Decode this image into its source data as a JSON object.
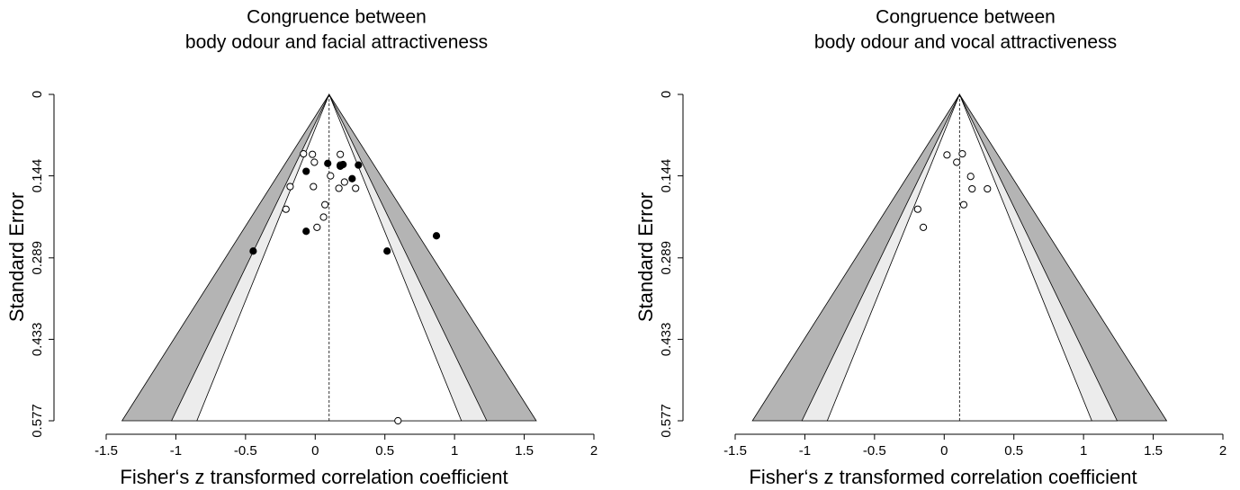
{
  "chart_data": [
    {
      "type": "funnel",
      "title": [
        "Congruence between",
        "body odour and facial attractiveness"
      ],
      "xlabel": "Fisher‘s z transformed correlation coefficient",
      "ylabel": "Standard Error",
      "xlim": [
        -1.5,
        2
      ],
      "xticks": [
        -1.5,
        -1,
        -0.5,
        0,
        0.5,
        1,
        1.5,
        2
      ],
      "ylim": [
        0,
        0.577
      ],
      "yticks": [
        0,
        0.144,
        0.289,
        0.433,
        0.577
      ],
      "funnel": {
        "center": 0.1,
        "levels": [
          1.645,
          1.96,
          2.576
        ],
        "colors": [
          "#ffffff",
          "#ececec",
          "#b4b4b4"
        ]
      },
      "series": [
        {
          "color": "#000000",
          "filled": false,
          "x": [
            -0.084,
            -0.02,
            -0.006,
            0.18,
            0.18,
            0.11,
            0.21,
            0.17,
            0.29,
            -0.18,
            -0.013,
            -0.21,
            0.07,
            0.06,
            0.013,
            0.594
          ],
          "values": [
            0.105,
            0.106,
            0.12,
            0.106,
            0.125,
            0.144,
            0.155,
            0.166,
            0.166,
            0.163,
            0.163,
            0.203,
            0.195,
            0.217,
            0.235,
            0.577
          ]
        },
        {
          "color": "#000000",
          "filled": true,
          "x": [
            -0.065,
            0.09,
            0.18,
            0.2,
            0.31,
            0.265,
            -0.065,
            -0.445,
            0.516,
            0.87
          ],
          "values": [
            0.136,
            0.122,
            0.127,
            0.124,
            0.125,
            0.149,
            0.242,
            0.277,
            0.277,
            0.25
          ]
        }
      ]
    },
    {
      "type": "funnel",
      "title": [
        "Congruence between",
        "body odour and vocal attractiveness"
      ],
      "xlabel": "Fisher‘s z transformed correlation coefficient",
      "ylabel": "Standard Error",
      "xlim": [
        -1.5,
        2
      ],
      "xticks": [
        -1.5,
        -1,
        -0.5,
        0,
        0.5,
        1,
        1.5,
        2
      ],
      "ylim": [
        0,
        0.577
      ],
      "yticks": [
        0,
        0.144,
        0.289,
        0.433,
        0.577
      ],
      "funnel": {
        "center": 0.11,
        "levels": [
          1.645,
          1.96,
          2.576
        ],
        "colors": [
          "#ffffff",
          "#ececec",
          "#b4b4b4"
        ]
      },
      "series": [
        {
          "color": "#000000",
          "filled": false,
          "x": [
            0.02,
            0.09,
            0.13,
            0.19,
            0.2,
            0.31,
            0.14,
            -0.19,
            -0.15
          ],
          "values": [
            0.107,
            0.12,
            0.105,
            0.145,
            0.167,
            0.167,
            0.195,
            0.203,
            0.235
          ]
        }
      ]
    }
  ]
}
